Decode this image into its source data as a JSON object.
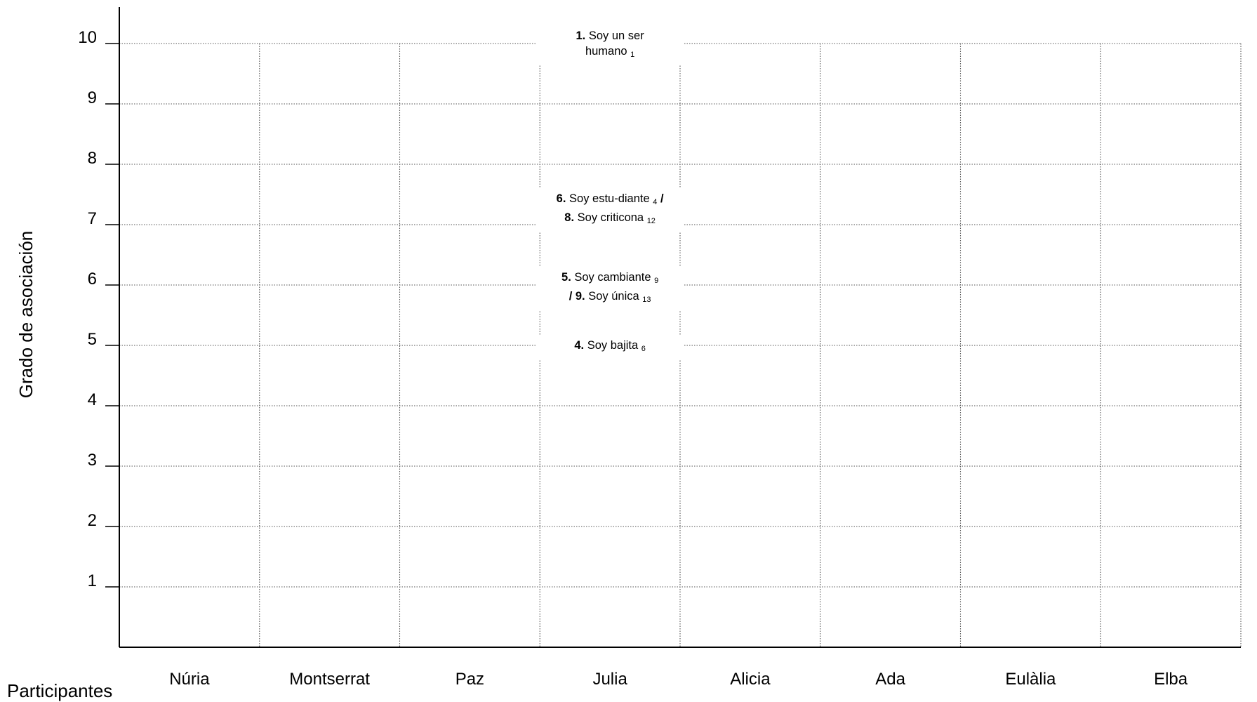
{
  "chart_data": {
    "type": "scatter",
    "title": "",
    "xlabel": "Participantes",
    "ylabel": "Grado de asociación",
    "categories": [
      "Núria",
      "Montserrat",
      "Paz",
      "Julia",
      "Alicia",
      "Ada",
      "Eulàlia",
      "Elba"
    ],
    "yticks": [
      1,
      2,
      3,
      4,
      5,
      6,
      7,
      8,
      9,
      10
    ],
    "ylim": [
      0,
      10
    ],
    "grid": true,
    "annotations": [
      {
        "category": "Julia",
        "y": 10,
        "lines": [
          [
            {
              "b": "1."
            },
            {
              "t": " Soy un ser"
            }
          ],
          [
            {
              "t": "humano "
            },
            {
              "s": "1"
            }
          ]
        ]
      },
      {
        "category": "Julia",
        "y": 7.3,
        "lines": [
          [
            {
              "b": "6."
            },
            {
              "t": " Soy estu-diante "
            },
            {
              "s": "4"
            },
            {
              "b": " /"
            }
          ],
          [
            {
              "b": "8."
            },
            {
              "t": " Soy criticona "
            },
            {
              "s": "12"
            }
          ]
        ]
      },
      {
        "category": "Julia",
        "y": 6,
        "lines": [
          [
            {
              "b": "5."
            },
            {
              "t": " Soy cambiante "
            },
            {
              "s": "9"
            }
          ],
          [
            {
              "b": "/ 9."
            },
            {
              "t": " Soy única "
            },
            {
              "s": "13"
            }
          ]
        ]
      },
      {
        "category": "Julia",
        "y": 5,
        "lines": [
          [
            {
              "b": "4."
            },
            {
              "t": " Soy bajita "
            },
            {
              "s": "6"
            }
          ]
        ]
      }
    ]
  }
}
